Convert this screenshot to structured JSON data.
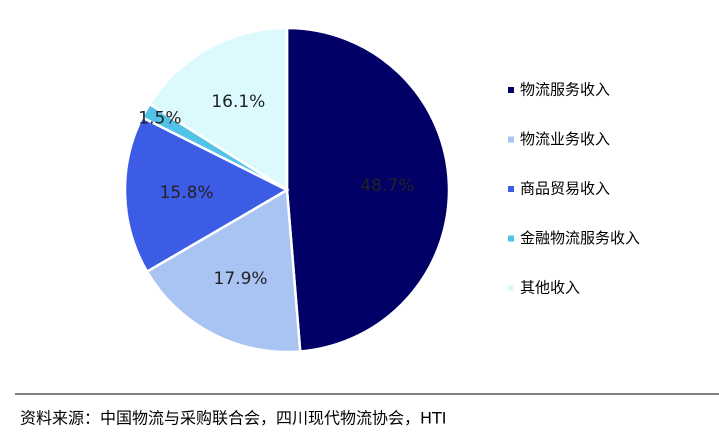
{
  "chart_data": {
    "type": "pie",
    "categories": [
      "物流服务收入",
      "物流业务收入",
      "商品贸易收入",
      "金融物流服务收入",
      "其他收入"
    ],
    "values": [
      48.7,
      17.9,
      15.8,
      1.5,
      16.1
    ],
    "value_labels": [
      "48.7%",
      "17.9%",
      "15.8%",
      "1.5%",
      "16.1%"
    ],
    "colors": [
      "#000066",
      "#a9c4f2",
      "#3d5ce6",
      "#52c3e6",
      "#dcfafd"
    ],
    "legend": "right",
    "source": "资料来源：中国物流与采购联合会，四川现代物流协会，HTI"
  }
}
